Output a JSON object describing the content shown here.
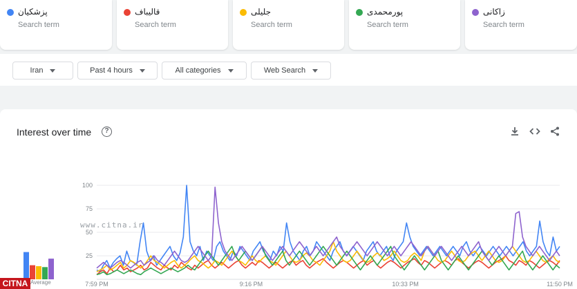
{
  "terms": [
    {
      "name": "پزشکیان",
      "sub": "Search term",
      "color": "#4285f4"
    },
    {
      "name": "قالیباف",
      "sub": "Search term",
      "color": "#ea4335"
    },
    {
      "name": "جلیلی",
      "sub": "Search term",
      "color": "#fbbc04"
    },
    {
      "name": "پورمحمدی",
      "sub": "Search term",
      "color": "#34a853"
    },
    {
      "name": "زاکانی",
      "sub": "Search term",
      "color": "#8e63ce"
    }
  ],
  "filters": {
    "region": "Iran",
    "time": "Past 4 hours",
    "category": "All categories",
    "property": "Web Search"
  },
  "chart": {
    "title": "Interest over time",
    "help": "?",
    "avg_label": "Average"
  },
  "watermark": "www.citna.ir",
  "logo": "CITNA",
  "chart_data": {
    "type": "line",
    "title": "Interest over time",
    "xlabel": "",
    "ylabel": "",
    "ylim": [
      0,
      100
    ],
    "yticks": [
      25,
      50,
      75,
      100
    ],
    "x_tick_labels": [
      "7:59 PM",
      "9:16 PM",
      "10:33 PM",
      "11:50 PM"
    ],
    "grid": true,
    "legend": "top",
    "averages": [
      {
        "name": "پزشکیان",
        "value": 29
      },
      {
        "name": "قالیباف",
        "value": 15
      },
      {
        "name": "جلیلی",
        "value": 14
      },
      {
        "name": "پورمحمدی",
        "value": 13
      },
      {
        "name": "زاکانی",
        "value": 22
      }
    ],
    "series": [
      {
        "name": "پزشکیان",
        "color": "#4285f4",
        "values": [
          10,
          8,
          15,
          20,
          12,
          18,
          22,
          25,
          15,
          30,
          20,
          18,
          15,
          40,
          60,
          30,
          20,
          25,
          15,
          20,
          25,
          30,
          35,
          25,
          20,
          28,
          45,
          100,
          40,
          30,
          25,
          35,
          20,
          30,
          25,
          20,
          35,
          40,
          30,
          25,
          20,
          30,
          25,
          35,
          30,
          25,
          20,
          30,
          35,
          40,
          30,
          25,
          20,
          30,
          25,
          35,
          30,
          60,
          40,
          30,
          25,
          20,
          30,
          35,
          25,
          30,
          40,
          35,
          30,
          25,
          20,
          30,
          35,
          40,
          30,
          25,
          30,
          35,
          30,
          25,
          20,
          30,
          35,
          40,
          30,
          25,
          30,
          35,
          25,
          20,
          30,
          35,
          40,
          60,
          45,
          35,
          30,
          25,
          30,
          35,
          30,
          25,
          30,
          35,
          30,
          25,
          30,
          35,
          30,
          25,
          35,
          40,
          30,
          25,
          30,
          35,
          30,
          25,
          30,
          35,
          30,
          25,
          30,
          35,
          30,
          25,
          30,
          35,
          40,
          30,
          25,
          30,
          35,
          62,
          40,
          30,
          25,
          45,
          30,
          35
        ]
      },
      {
        "name": "قالیباف",
        "color": "#ea4335",
        "values": [
          5,
          8,
          10,
          6,
          12,
          8,
          10,
          15,
          10,
          12,
          8,
          10,
          12,
          15,
          10,
          12,
          18,
          15,
          12,
          10,
          15,
          12,
          10,
          15,
          12,
          18,
          15,
          12,
          10,
          15,
          12,
          15,
          18,
          20,
          15,
          12,
          15,
          18,
          15,
          12,
          15,
          18,
          20,
          15,
          12,
          15,
          18,
          15,
          20,
          18,
          15,
          12,
          15,
          18,
          15,
          12,
          15,
          18,
          20,
          15,
          18,
          20,
          15,
          12,
          15,
          18,
          20,
          22,
          18,
          15,
          12,
          15,
          18,
          20,
          18,
          15,
          12,
          15,
          18,
          20,
          15,
          18,
          20,
          15,
          12,
          15,
          18,
          20,
          18,
          15,
          12,
          15,
          18,
          20,
          22,
          18,
          15,
          20,
          18,
          15,
          12,
          15,
          18,
          20,
          18,
          15,
          20,
          22,
          18,
          15,
          12,
          15,
          18,
          20,
          18,
          15,
          12,
          15,
          18,
          20,
          22,
          25,
          20,
          18,
          15,
          20,
          18,
          15,
          20,
          18,
          15,
          12,
          15,
          18,
          20,
          18,
          15,
          20
        ]
      },
      {
        "name": "جلیلی",
        "color": "#fbbc04",
        "values": [
          8,
          10,
          12,
          15,
          10,
          12,
          15,
          18,
          12,
          15,
          20,
          18,
          15,
          12,
          15,
          20,
          25,
          20,
          18,
          15,
          12,
          15,
          18,
          20,
          15,
          12,
          15,
          18,
          22,
          25,
          20,
          18,
          15,
          12,
          15,
          20,
          18,
          15,
          20,
          25,
          30,
          25,
          20,
          18,
          15,
          20,
          25,
          20,
          18,
          22,
          25,
          20,
          18,
          15,
          20,
          25,
          30,
          25,
          20,
          18,
          20,
          25,
          28,
          25,
          20,
          18,
          15,
          20,
          25,
          30,
          40,
          30,
          25,
          20,
          18,
          20,
          25,
          30,
          25,
          20,
          18,
          20,
          25,
          28,
          25,
          20,
          22,
          25,
          30,
          25,
          20,
          18,
          20,
          25,
          28,
          25,
          20,
          30,
          35,
          30,
          25,
          20,
          18,
          20,
          25,
          30,
          25,
          20,
          18,
          20,
          25,
          28,
          30,
          25,
          20,
          25,
          30,
          25,
          20,
          18,
          20,
          25,
          30,
          35,
          30,
          25,
          20,
          18,
          20,
          25,
          30,
          25,
          20,
          18,
          22,
          25,
          20,
          18
        ]
      },
      {
        "name": "پورمحمدی",
        "color": "#34a853",
        "values": [
          5,
          6,
          8,
          5,
          6,
          8,
          10,
          8,
          6,
          8,
          10,
          8,
          6,
          5,
          8,
          10,
          12,
          10,
          8,
          6,
          8,
          10,
          12,
          10,
          8,
          10,
          12,
          15,
          12,
          10,
          15,
          20,
          25,
          30,
          25,
          20,
          15,
          20,
          25,
          30,
          35,
          25,
          20,
          25,
          30,
          25,
          20,
          25,
          30,
          35,
          25,
          20,
          15,
          20,
          25,
          30,
          20,
          15,
          20,
          25,
          30,
          25,
          20,
          15,
          20,
          25,
          30,
          35,
          30,
          25,
          20,
          15,
          20,
          25,
          30,
          25,
          20,
          15,
          10,
          15,
          20,
          25,
          20,
          15,
          20,
          25,
          30,
          35,
          25,
          20,
          15,
          10,
          15,
          20,
          25,
          20,
          15,
          10,
          15,
          20,
          25,
          30,
          20,
          15,
          10,
          15,
          20,
          25,
          20,
          15,
          10,
          15,
          20,
          25,
          30,
          25,
          20,
          15,
          20,
          25,
          20,
          15,
          10,
          15,
          20,
          25,
          30,
          20,
          15,
          10,
          15,
          20,
          25,
          20,
          15,
          10,
          15,
          12
        ]
      },
      {
        "name": "زاکانی",
        "color": "#8e63ce",
        "values": [
          12,
          15,
          18,
          15,
          12,
          15,
          18,
          20,
          18,
          15,
          12,
          15,
          18,
          20,
          15,
          18,
          20,
          25,
          20,
          18,
          15,
          20,
          25,
          30,
          25,
          20,
          18,
          20,
          25,
          30,
          35,
          30,
          25,
          20,
          25,
          98,
          60,
          40,
          30,
          25,
          20,
          25,
          30,
          35,
          30,
          25,
          20,
          25,
          30,
          35,
          30,
          25,
          20,
          25,
          30,
          35,
          30,
          25,
          30,
          35,
          40,
          35,
          30,
          25,
          30,
          35,
          30,
          25,
          30,
          35,
          40,
          45,
          35,
          30,
          25,
          30,
          35,
          40,
          35,
          30,
          25,
          30,
          35,
          40,
          35,
          30,
          25,
          30,
          35,
          30,
          25,
          30,
          35,
          40,
          35,
          30,
          25,
          30,
          35,
          30,
          25,
          30,
          35,
          30,
          25,
          20,
          25,
          30,
          35,
          30,
          25,
          30,
          35,
          40,
          30,
          25,
          20,
          25,
          30,
          35,
          30,
          25,
          30,
          35,
          70,
          72,
          45,
          35,
          30,
          25,
          30,
          35,
          30,
          25,
          20,
          25,
          30,
          25
        ]
      }
    ]
  }
}
